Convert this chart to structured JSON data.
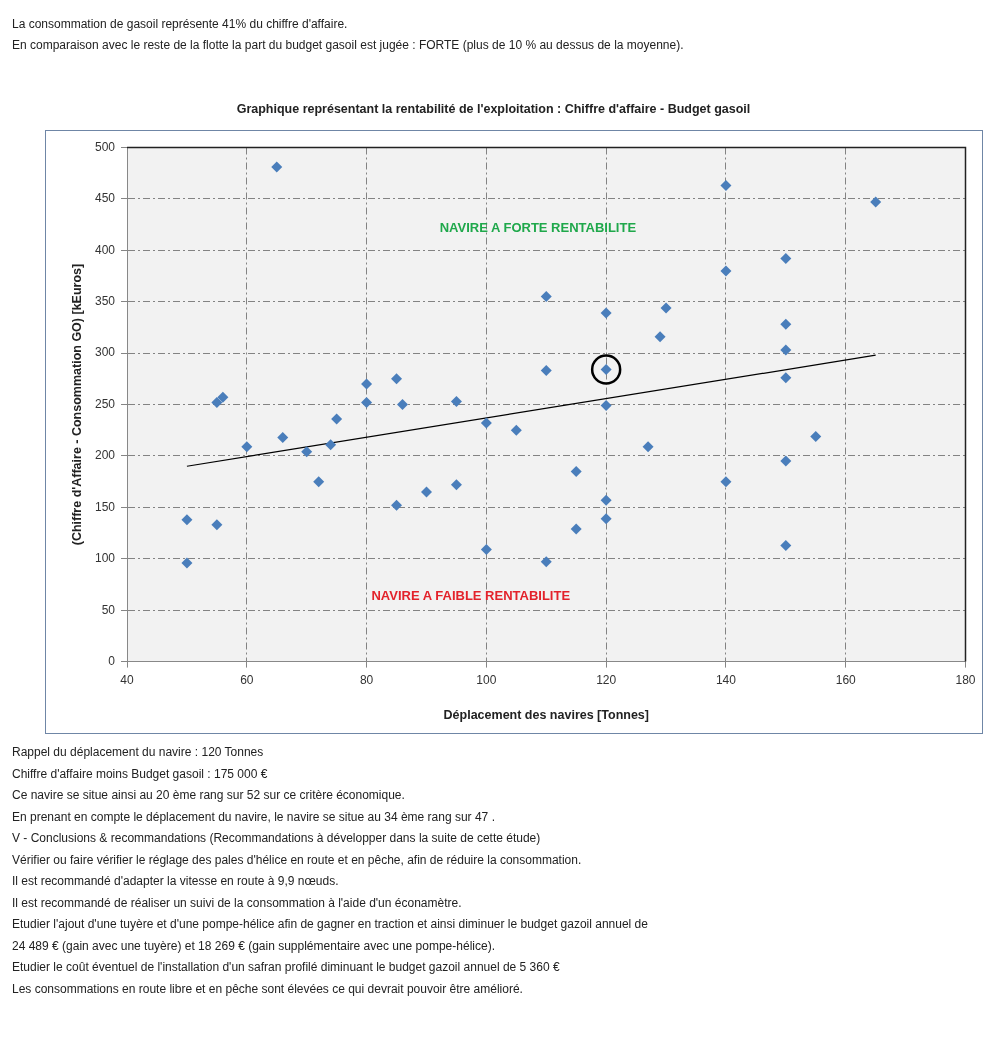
{
  "chart_data": {
    "type": "scatter",
    "title": "Graphique représentant la rentabilité de l'exploitation : Chiffre d'affaire - Budget gasoil",
    "xlabel": "Déplacement des navires [Tonnes]",
    "ylabel": "(Chiffre d'Affaire - Consommation GO) [kEuros]",
    "xlim": [
      40,
      180
    ],
    "xticks": [
      40,
      60,
      80,
      100,
      120,
      140,
      160,
      180
    ],
    "ylim": [
      0,
      500
    ],
    "yticks": [
      0,
      50,
      100,
      150,
      200,
      250,
      300,
      350,
      400,
      450,
      500
    ],
    "grid": true,
    "legend": false,
    "marker": "diamond",
    "series": [
      {
        "color": "#4a7ebb",
        "x": [
          50,
          50,
          55,
          56,
          55,
          60,
          65,
          66,
          70,
          72,
          74,
          75,
          80,
          80,
          85,
          85,
          86,
          90,
          95,
          95,
          100,
          100,
          105,
          110,
          110,
          110,
          115,
          115,
          120,
          120,
          120,
          120,
          120,
          127,
          129,
          130,
          140,
          140,
          140,
          150,
          150,
          150,
          150,
          150,
          150,
          155,
          165
        ],
        "values": [
          138,
          96,
          252,
          257,
          133,
          209,
          481,
          218,
          204,
          175,
          211,
          236,
          270,
          252,
          275,
          152,
          250,
          165,
          253,
          172,
          232,
          109,
          225,
          355,
          283,
          97,
          185,
          129,
          339,
          284,
          249,
          157,
          139,
          209,
          316,
          344,
          463,
          380,
          175,
          392,
          328,
          303,
          276,
          195,
          113,
          219,
          447
        ]
      },
      {
        "type": "line",
        "color": "#000000",
        "marker": "none",
        "x": [
          50,
          165
        ],
        "values": [
          190,
          298
        ]
      },
      {
        "color": "#000000",
        "marker": "circle",
        "x": [
          120
        ],
        "values": [
          284
        ]
      }
    ],
    "annotations": [
      "La consommation de gasoil représente 41% du chiffre d'affaire.",
      "En comparaison avec le reste de la flotte la part du budget gasoil est jugée : FORTE (plus de 10 % au dessus de la moyenne).",
      "NAVIRE A FORTE RENTABILITE",
      "NAVIRE A FAIBLE RENTABILITE",
      "Rappel du déplacement du navire : 120 Tonnes",
      "Chiffre d'affaire moins Budget gasoil : 175 000 €",
      "Ce navire se situe ainsi au 20 ème rang sur 52 sur ce critère économique.",
      "En prenant en compte le déplacement du navire, le navire se situe au 34 ème rang sur 47 .",
      "V - Conclusions & recommandations (Recommandations à développer dans la suite de cette étude)",
      "Vérifier ou faire vérifier le réglage des pales d'hélice en route et en pêche, afin de réduire la consommation.",
      "Il est recommandé d'adapter la vitesse en route à 9,9 nœuds.",
      "Il est recommandé de réaliser un suivi de la consommation à l'aide d'un éconamètre.",
      "Etudier l'ajout d'une tuyère et d'une pompe-hélice afin de gagner en traction et ainsi diminuer le budget gazoil annuel de",
      "24 489 € (gain avec une tuyère) et 18 269 € (gain supplémentaire avec une pompe-hélice).",
      "Etudier le coût éventuel de l'installation d'un safran profilé diminuant le budget gazoil annuel de 5 360 €",
      "Les consommations en route libre et en pêche sont élevées ce qui devrait pouvoir être amélioré."
    ]
  }
}
